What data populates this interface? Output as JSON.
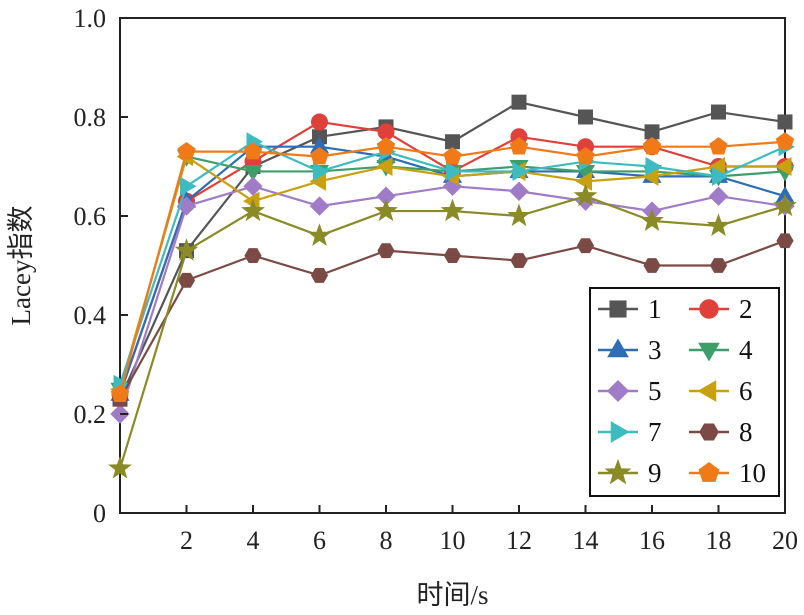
{
  "chart_data": {
    "type": "line",
    "title": "",
    "xlabel": "时间/s",
    "ylabel": "Lacey指数",
    "xlim": [
      0,
      20
    ],
    "ylim": [
      0,
      1.0
    ],
    "x_ticks": [
      2,
      4,
      6,
      8,
      10,
      12,
      14,
      16,
      18,
      20
    ],
    "x_tick_labels": [
      "2",
      "4",
      "6",
      "8",
      "10",
      "12",
      "14",
      "16",
      "18",
      "20"
    ],
    "y_ticks": [
      0,
      0.2,
      0.4,
      0.6,
      0.8,
      1.0
    ],
    "y_tick_labels": [
      "0",
      "0.2",
      "0.4",
      "0.6",
      "0.8",
      "1.0"
    ],
    "grid": false,
    "legend_position": "bottom-right",
    "x": [
      0,
      2,
      4,
      6,
      8,
      10,
      12,
      14,
      16,
      18,
      20
    ],
    "series": [
      {
        "name": "1",
        "color": "#555555",
        "marker": "square",
        "values": [
          0.23,
          0.53,
          0.7,
          0.76,
          0.78,
          0.75,
          0.83,
          0.8,
          0.77,
          0.81,
          0.79
        ]
      },
      {
        "name": "2",
        "color": "#e0403a",
        "marker": "circle",
        "values": [
          0.24,
          0.63,
          0.71,
          0.79,
          0.77,
          0.69,
          0.76,
          0.74,
          0.74,
          0.7,
          0.7
        ]
      },
      {
        "name": "3",
        "color": "#2e6db4",
        "marker": "triangle-up",
        "values": [
          0.24,
          0.63,
          0.74,
          0.74,
          0.72,
          0.68,
          0.69,
          0.69,
          0.68,
          0.68,
          0.64
        ]
      },
      {
        "name": "4",
        "color": "#3e9e6a",
        "marker": "triangle-down",
        "values": [
          0.25,
          0.72,
          0.69,
          0.69,
          0.7,
          0.69,
          0.7,
          0.69,
          0.69,
          0.68,
          0.69
        ]
      },
      {
        "name": "5",
        "color": "#a07cc8",
        "marker": "diamond",
        "values": [
          0.2,
          0.62,
          0.66,
          0.62,
          0.64,
          0.66,
          0.65,
          0.63,
          0.61,
          0.64,
          0.62
        ]
      },
      {
        "name": "6",
        "color": "#c8a010",
        "marker": "triangle-left",
        "values": [
          0.25,
          0.72,
          0.63,
          0.67,
          0.7,
          0.68,
          0.69,
          0.67,
          0.68,
          0.7,
          0.7
        ]
      },
      {
        "name": "7",
        "color": "#3cbcc0",
        "marker": "triangle-right",
        "values": [
          0.26,
          0.66,
          0.75,
          0.69,
          0.73,
          0.69,
          0.69,
          0.71,
          0.7,
          0.68,
          0.74
        ]
      },
      {
        "name": "8",
        "color": "#7b4a44",
        "marker": "hexagon",
        "values": [
          0.23,
          0.47,
          0.52,
          0.48,
          0.53,
          0.52,
          0.51,
          0.54,
          0.5,
          0.5,
          0.55
        ]
      },
      {
        "name": "9",
        "color": "#8a8a26",
        "marker": "star",
        "values": [
          0.09,
          0.53,
          0.61,
          0.56,
          0.61,
          0.61,
          0.6,
          0.64,
          0.59,
          0.58,
          0.62
        ]
      },
      {
        "name": "10",
        "color": "#f07a18",
        "marker": "pentagon",
        "values": [
          0.24,
          0.73,
          0.73,
          0.72,
          0.74,
          0.72,
          0.74,
          0.72,
          0.74,
          0.74,
          0.75
        ]
      }
    ]
  }
}
